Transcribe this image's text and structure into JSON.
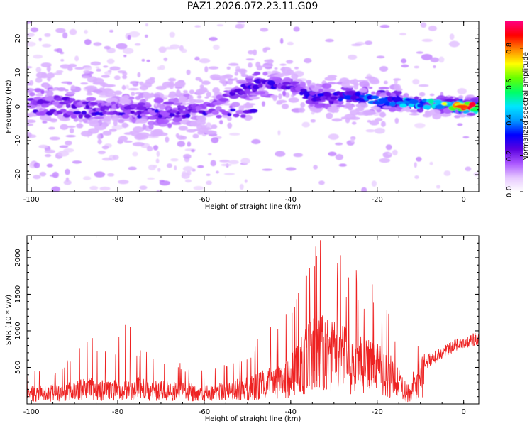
{
  "title": "PAZ1.2026.072.23.11.G09",
  "colors": {
    "snr_line": "#ee2222",
    "colorbar": [
      "#ffffff",
      "#e6c8ff",
      "#aa55ff",
      "#5a00e0",
      "#0000ff",
      "#0099ff",
      "#00e5ff",
      "#00ff66",
      "#66ff00",
      "#ffff00",
      "#ff8800",
      "#ff0000",
      "#ff007f"
    ]
  },
  "chart_data": [
    {
      "type": "heatmap",
      "name": "spectrogram",
      "title": "PAZ1.2026.072.23.11.G09",
      "xlabel": "Height of straight line (km)",
      "ylabel": "Frequency (Hz)",
      "xlim": [
        -101,
        3.5
      ],
      "ylim": [
        -25,
        25
      ],
      "xticks": [
        -100,
        -80,
        -60,
        -40,
        -20,
        0
      ],
      "yticks": [
        -20,
        -10,
        0,
        10,
        20
      ],
      "colorbar": {
        "label": "Normalized spectral amplitude",
        "range": [
          0,
          0.95
        ],
        "ticks": [
          0.0,
          0.2,
          0.4,
          0.6,
          0.8
        ]
      },
      "ridge": {
        "description": "dominant signal band",
        "points": [
          {
            "x": -95,
            "y": 2,
            "amp": 0.22
          },
          {
            "x": -86,
            "y": 0,
            "amp": 0.25
          },
          {
            "x": -80,
            "y": 0,
            "amp": 0.2
          },
          {
            "x": -70,
            "y": -2,
            "amp": 0.28
          },
          {
            "x": -60,
            "y": 0,
            "amp": 0.18
          },
          {
            "x": -47,
            "y": 7,
            "amp": 0.3
          },
          {
            "x": -40,
            "y": 6,
            "amp": 0.25
          },
          {
            "x": -35,
            "y": 3,
            "amp": 0.32
          },
          {
            "x": -25,
            "y": 3,
            "amp": 0.35
          },
          {
            "x": -20,
            "y": 2,
            "amp": 0.4
          },
          {
            "x": -12,
            "y": 1,
            "amp": 0.5
          },
          {
            "x": -5,
            "y": 0.5,
            "amp": 0.6
          },
          {
            "x": 0,
            "y": 0,
            "amp": 0.92
          }
        ]
      }
    },
    {
      "type": "line",
      "name": "snr",
      "xlabel": "Height of straight line (km)",
      "ylabel": "SNR (10 * v/v)",
      "xlim": [
        -101,
        3.5
      ],
      "ylim": [
        0,
        2300
      ],
      "xticks": [
        -100,
        -80,
        -60,
        -40,
        -20,
        0
      ],
      "yticks": [
        500,
        1000,
        1500,
        2000
      ],
      "envelope": {
        "x": [
          -101,
          -95,
          -90,
          -86,
          -82,
          -78,
          -75,
          -70,
          -65,
          -60,
          -55,
          -50,
          -46,
          -42,
          -40,
          -38,
          -35,
          -33,
          -31,
          -29,
          -27,
          -25,
          -23,
          -21,
          -19,
          -17,
          -15,
          -13,
          -11,
          -9,
          -7,
          -5,
          -3,
          -1,
          1,
          3.5
        ],
        "mean": [
          200,
          220,
          250,
          300,
          260,
          280,
          300,
          260,
          240,
          220,
          260,
          300,
          380,
          450,
          550,
          750,
          950,
          1000,
          900,
          900,
          850,
          800,
          700,
          700,
          650,
          550,
          400,
          300,
          420,
          560,
          630,
          700,
          780,
          820,
          860,
          900
        ],
        "peak": [
          450,
          500,
          650,
          1130,
          700,
          1220,
          750,
          650,
          550,
          450,
          600,
          750,
          1000,
          1250,
          1400,
          1650,
          2150,
          2260,
          1700,
          2280,
          1700,
          1950,
          1500,
          1650,
          1550,
          1250,
          900,
          650,
          750,
          1000,
          850,
          950,
          1050,
          1110,
          1000,
          1000
        ]
      }
    }
  ]
}
